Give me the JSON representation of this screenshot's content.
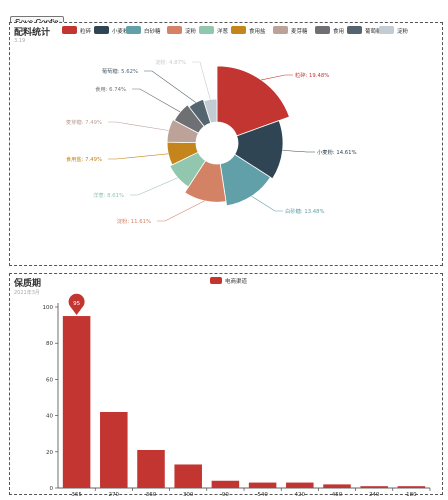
{
  "toolbar": {
    "save_label": "Save Config"
  },
  "colors": {
    "palette": [
      "#c23531",
      "#2f4554",
      "#61a0a8",
      "#d48265",
      "#91c7ae",
      "#c4861c",
      "#bda29a",
      "#6e7074",
      "#546570",
      "#c4ccd3"
    ]
  },
  "pie_panel": {
    "title": "配料统计",
    "subtitle": "3.19"
  },
  "bar_panel": {
    "title": "保质期",
    "subtitle": "2021年3月"
  },
  "chart_data": [
    {
      "type": "pie",
      "variant": "donut",
      "title": "配料统计",
      "subtitle": "3.19",
      "legend_position": "top",
      "slices": [
        {
          "name": "粒碎",
          "percent": 19.48
        },
        {
          "name": "小麦粉",
          "percent": 14.61
        },
        {
          "name": "白砂糖",
          "percent": 13.48
        },
        {
          "name": "淀粉",
          "percent": 11.61
        },
        {
          "name": "洋葱",
          "percent": 8.61
        },
        {
          "name": "食用盐",
          "percent": 7.49
        },
        {
          "name": "麦芽糖",
          "percent": 7.49
        },
        {
          "name": "食用",
          "percent": 6.74
        },
        {
          "name": "葡萄糖",
          "percent": 5.62
        },
        {
          "name": "淀粉",
          "percent": 4.87
        }
      ]
    },
    {
      "type": "bar",
      "title": "保质期",
      "subtitle": "2021年3月",
      "legend_position": "top-center",
      "series": [
        {
          "name": "电商渠道",
          "values": [
            95,
            42,
            21,
            13,
            4,
            3,
            3,
            2,
            1,
            1
          ]
        }
      ],
      "categories": [
        "365",
        "270",
        "360",
        "300",
        "90",
        "540",
        "420",
        "450",
        "240",
        "180"
      ],
      "ylim": [
        0,
        100
      ],
      "yticks": [
        0,
        20,
        40,
        60,
        80,
        100
      ],
      "max_marker": {
        "label": "95",
        "category": "365"
      }
    }
  ]
}
